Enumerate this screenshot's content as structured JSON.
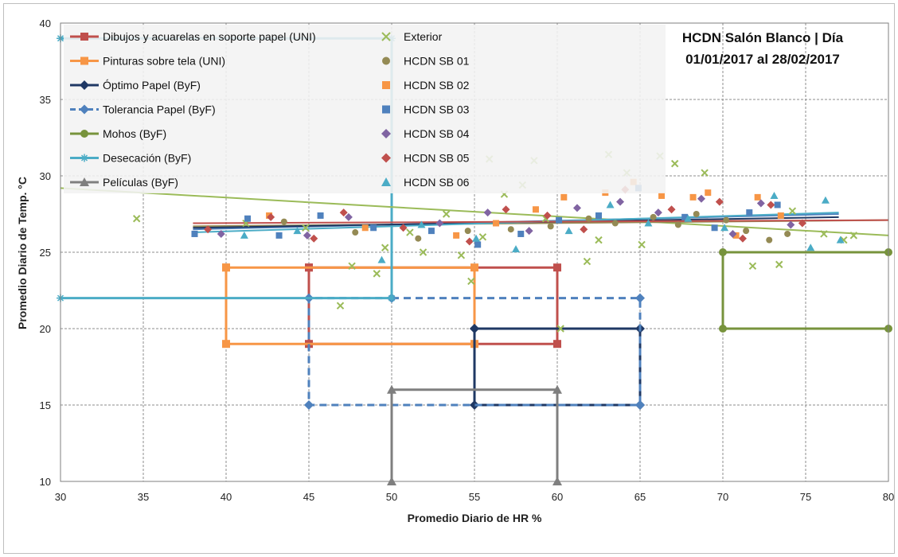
{
  "chart_data": {
    "type": "scatter",
    "title": "HCDN Salón Blanco | Día",
    "subtitle": "01/01/2017 al 28/02/2017",
    "xlabel": "Promedio Diario de HR %",
    "ylabel": "Promedio Diario de Temp. °C",
    "xlim": [
      30,
      80
    ],
    "ylim": [
      10,
      40
    ],
    "xticks": [
      "30",
      "35",
      "40",
      "45",
      "50",
      "55",
      "60",
      "65",
      "70",
      "75",
      "80"
    ],
    "yticks": [
      "10",
      "15",
      "20",
      "25",
      "30",
      "35",
      "40"
    ],
    "grid": true,
    "legend_position": "top-left",
    "zones": [
      {
        "name": "Dibujos y acuarelas en soporte papel (UNI)",
        "color": "#c0504d",
        "dash": false,
        "marker": "square",
        "x": [
          45,
          60,
          60,
          45,
          45
        ],
        "y": [
          24,
          24,
          19,
          19,
          24
        ]
      },
      {
        "name": "Pinturas sobre tela (UNI)",
        "color": "#f79646",
        "dash": false,
        "marker": "square",
        "x": [
          40,
          55,
          55,
          40,
          40
        ],
        "y": [
          24,
          24,
          19,
          19,
          24
        ]
      },
      {
        "name": "Óptimo Papel (ByF)",
        "color": "#1f3864",
        "dash": false,
        "marker": "diamond",
        "x": [
          55,
          65,
          65,
          55,
          55
        ],
        "y": [
          20,
          20,
          15,
          15,
          20
        ]
      },
      {
        "name": "Tolerancia Papel (ByF)",
        "color": "#4f81bd",
        "dash": true,
        "marker": "diamond",
        "x": [
          50,
          65,
          65,
          45,
          45,
          50
        ],
        "y": [
          22,
          22,
          15,
          15,
          22,
          22
        ]
      },
      {
        "name": "Mohos (ByF)",
        "color": "#77933c",
        "dash": false,
        "marker": "circle",
        "x": [
          80,
          70,
          70,
          80
        ],
        "y": [
          25,
          25,
          20,
          20
        ]
      },
      {
        "name": "Desecación (ByF)",
        "color": "#4bacc6",
        "dash": false,
        "marker": "star",
        "x": [
          30,
          50,
          50,
          30
        ],
        "y": [
          22,
          22,
          39,
          39
        ]
      },
      {
        "name": "Películas (ByF)",
        "color": "#7f7f7f",
        "dash": false,
        "marker": "triangle",
        "x": [
          50,
          50,
          60,
          60
        ],
        "y": [
          10,
          16,
          16,
          10
        ]
      }
    ],
    "series": [
      {
        "name": "Exterior",
        "color": "#9bbb59",
        "marker": "x",
        "x": [
          34.6,
          41.2,
          44.8,
          46.9,
          47.6,
          49.1,
          49.6,
          51.1,
          51.9,
          53.3,
          54.2,
          54.8,
          55.5,
          55.9,
          56.8,
          57.9,
          58.6,
          59.3,
          60.2,
          61.8,
          62.5,
          63.1,
          64.2,
          65.1,
          66.2,
          67.1,
          68.9,
          71.8,
          73.4,
          74.2,
          76.1,
          77.3,
          77.9
        ],
        "y": [
          27.2,
          26.9,
          26.6,
          21.5,
          24.1,
          23.6,
          25.3,
          26.3,
          25.0,
          27.5,
          24.8,
          23.1,
          26.0,
          31.1,
          28.8,
          29.4,
          31.0,
          27.2,
          20.0,
          24.4,
          25.8,
          31.4,
          30.2,
          25.5,
          31.3,
          30.8,
          30.2,
          24.1,
          24.2,
          27.7,
          26.2,
          25.8,
          26.1
        ]
      },
      {
        "name": "HCDN SB 01",
        "color": "#948a54",
        "marker": "circle",
        "x": [
          43.5,
          47.8,
          51.6,
          54.6,
          57.2,
          59.6,
          61.9,
          63.5,
          65.8,
          67.3,
          68.4,
          70.2,
          71.4,
          72.8,
          73.9
        ],
        "y": [
          27.0,
          26.3,
          25.9,
          26.4,
          26.5,
          26.7,
          27.2,
          26.9,
          27.3,
          26.8,
          27.5,
          27.1,
          26.4,
          25.8,
          26.2
        ]
      },
      {
        "name": "HCDN SB 02",
        "color": "#f79646",
        "marker": "square",
        "x": [
          42.6,
          48.4,
          53.9,
          56.3,
          58.7,
          60.4,
          62.9,
          64.6,
          66.3,
          68.2,
          69.1,
          70.8,
          72.1,
          73.5
        ],
        "y": [
          27.4,
          26.6,
          26.1,
          26.9,
          27.8,
          28.6,
          28.9,
          29.6,
          28.7,
          28.6,
          28.9,
          26.1,
          28.6,
          27.4
        ]
      },
      {
        "name": "HCDN SB 03",
        "color": "#4f81bd",
        "marker": "square",
        "x": [
          38.1,
          41.3,
          43.2,
          45.7,
          48.9,
          52.4,
          55.2,
          57.8,
          60.1,
          62.5,
          64.9,
          67.7,
          69.5,
          71.6,
          73.3
        ],
        "y": [
          26.2,
          27.2,
          26.1,
          27.4,
          26.6,
          26.4,
          25.5,
          26.2,
          27.1,
          27.4,
          29.2,
          27.3,
          26.6,
          27.6,
          28.1
        ]
      },
      {
        "name": "HCDN SB 04",
        "color": "#8064a2",
        "marker": "diamond",
        "x": [
          39.7,
          44.9,
          47.4,
          52.9,
          55.8,
          58.3,
          61.2,
          63.8,
          66.1,
          68.7,
          70.6,
          72.3,
          74.1
        ],
        "y": [
          26.2,
          26.1,
          27.3,
          26.9,
          27.6,
          26.4,
          27.9,
          28.3,
          27.6,
          28.5,
          26.2,
          28.2,
          26.8
        ]
      },
      {
        "name": "HCDN SB 05",
        "color": "#c0504d",
        "marker": "diamond",
        "x": [
          38.9,
          42.7,
          45.3,
          47.1,
          50.7,
          54.7,
          56.9,
          59.4,
          61.6,
          64.1,
          66.9,
          69.8,
          71.2,
          72.9,
          74.8
        ],
        "y": [
          26.5,
          27.3,
          25.9,
          27.6,
          26.6,
          25.7,
          27.8,
          27.4,
          26.5,
          29.1,
          27.8,
          28.3,
          25.9,
          28.1,
          26.9
        ]
      },
      {
        "name": "HCDN SB 06",
        "color": "#4bacc6",
        "marker": "triangle",
        "x": [
          41.1,
          44.3,
          49.4,
          51.8,
          55.1,
          57.5,
          60.7,
          63.2,
          65.5,
          67.9,
          70.1,
          73.1,
          75.3,
          76.2,
          77.1
        ],
        "y": [
          26.1,
          26.4,
          24.5,
          26.8,
          25.9,
          25.2,
          26.4,
          28.1,
          26.9,
          27.2,
          26.6,
          28.7,
          25.3,
          28.4,
          25.8
        ]
      }
    ],
    "trendlines": [
      {
        "color": "#9bbb59",
        "x": [
          30,
          80
        ],
        "y": [
          29.2,
          26.1
        ]
      },
      {
        "color": "#948a54",
        "x": [
          38,
          80
        ],
        "y": [
          26.7,
          27.1
        ]
      },
      {
        "color": "#4f81bd",
        "x": [
          38,
          77
        ],
        "y": [
          26.5,
          27.5
        ]
      },
      {
        "color": "#1f3864",
        "x": [
          38,
          77
        ],
        "y": [
          26.6,
          27.3
        ]
      },
      {
        "color": "#4bacc6",
        "x": [
          38,
          77
        ],
        "y": [
          26.3,
          27.6
        ]
      },
      {
        "color": "#c0504d",
        "x": [
          38,
          80
        ],
        "y": [
          26.9,
          27.1
        ]
      }
    ]
  }
}
